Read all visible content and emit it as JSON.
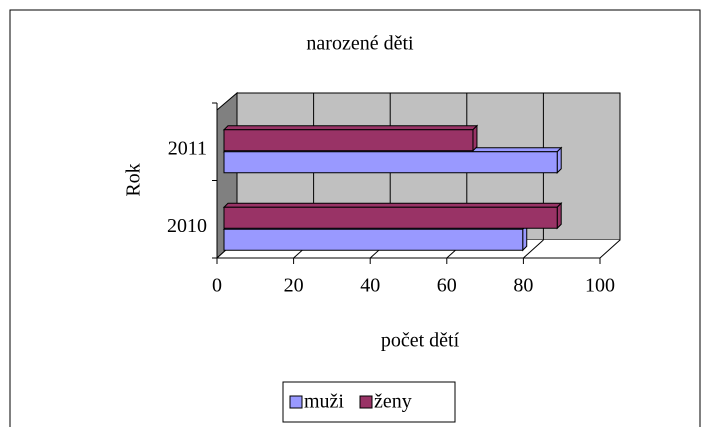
{
  "chart_data": {
    "type": "bar",
    "orientation": "horizontal",
    "title": "narozené děti",
    "x_label": "počet dětí",
    "y_label": "Rok",
    "categories": [
      "2010",
      "2011"
    ],
    "series": [
      {
        "name": "muži",
        "color": "#9999ff",
        "values": [
          78,
          87
        ]
      },
      {
        "name": "ženy",
        "color": "#993366",
        "values": [
          87,
          65
        ]
      }
    ],
    "xlim": [
      0,
      100
    ],
    "xticks": [
      0,
      20,
      40,
      60,
      80,
      100
    ],
    "grid": true,
    "legend": "bottom"
  }
}
